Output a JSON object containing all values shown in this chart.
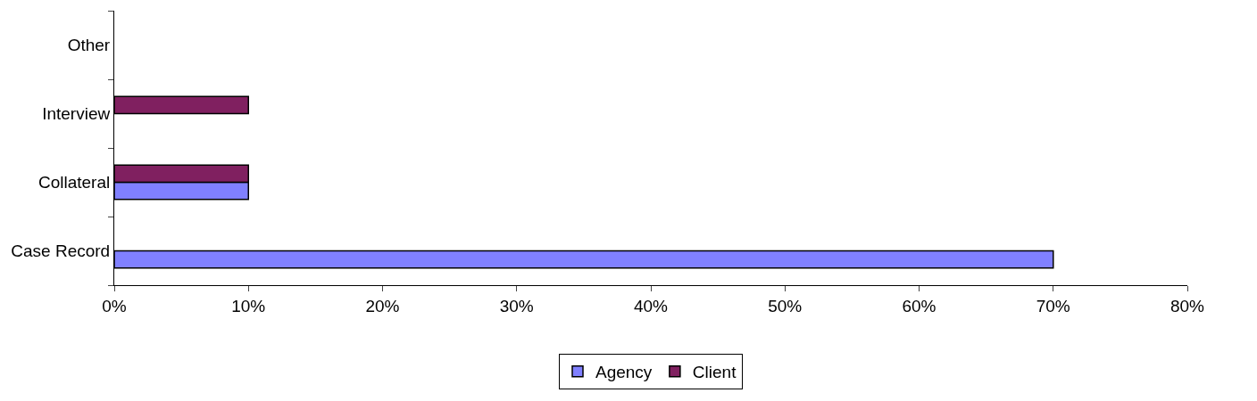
{
  "chart_data": {
    "type": "bar",
    "orientation": "horizontal",
    "categories": [
      "Other",
      "Interview",
      "Collateral",
      "Case Record"
    ],
    "series": [
      {
        "name": "Agency",
        "color": "#8080ff",
        "values": [
          null,
          null,
          10,
          70
        ]
      },
      {
        "name": "Client",
        "color": "#802060",
        "values": [
          null,
          10,
          10,
          null
        ]
      }
    ],
    "xlim": [
      0,
      80
    ],
    "xticks": [
      {
        "value": 0,
        "label": "0%"
      },
      {
        "value": 10,
        "label": "10%"
      },
      {
        "value": 20,
        "label": "20%"
      },
      {
        "value": 30,
        "label": "30%"
      },
      {
        "value": 40,
        "label": "40%"
      },
      {
        "value": 50,
        "label": "50%"
      },
      {
        "value": 60,
        "label": "60%"
      },
      {
        "value": 70,
        "label": "70%"
      },
      {
        "value": 80,
        "label": "80%"
      }
    ],
    "legend": "bottom"
  }
}
